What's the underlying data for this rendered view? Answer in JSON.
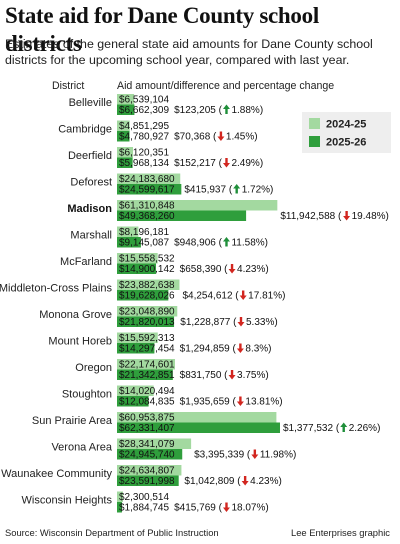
{
  "title": "State aid for Dane County school districts",
  "subtitle": "Estimates of the general state aid amounts for Dane County school districts for the upcoming school year, compared with last year.",
  "source": "Source: Wisconsin Department of Public Instruction",
  "credit": "Lee Enterprises graphic",
  "colors": {
    "light": "#a3d9a0",
    "dark": "#2f9e3c",
    "up": "#1f8f3a",
    "down": "#d2261f"
  },
  "chart_data": {
    "type": "bar",
    "orientation": "horizontal",
    "column_headers": {
      "category": "District",
      "value": "Aid amount/difference and percentage change"
    },
    "legend": [
      "2024-25",
      "2025-26"
    ],
    "series": [
      {
        "name": "2024-25",
        "values": [
          6539104,
          4851295,
          6120351,
          24183680,
          61310848,
          8196181,
          15558532,
          23882638,
          23048890,
          15592313,
          22174601,
          14020494,
          60953875,
          28341079,
          24634807,
          2300514
        ]
      },
      {
        "name": "2025-26",
        "values": [
          6662309,
          4780927,
          5968134,
          24599617,
          49368260,
          9145087,
          14900142,
          19628026,
          21820013,
          14297454,
          21342851,
          12084835,
          62331407,
          24945740,
          23591998,
          1884745
        ]
      }
    ],
    "categories": [
      "Belleville",
      "Cambridge",
      "Deerfield",
      "Deforest",
      "Madison",
      "Marshall",
      "McFarland",
      "Middleton-Cross Plains",
      "Monona Grove",
      "Mount Horeb",
      "Oregon",
      "Stoughton",
      "Sun Prairie Area",
      "Verona Area",
      "Waunakee Community",
      "Wisconsin Heights"
    ],
    "highlight": "Madison",
    "rows": [
      {
        "label": "$6,539,104",
        "label2": "$6,662,309",
        "diff": "$123,205",
        "pct": "1.88%",
        "dir": "up"
      },
      {
        "label": "$4,851,295",
        "label2": "$4,780,927",
        "diff": "$70,368",
        "pct": "1.45%",
        "dir": "down"
      },
      {
        "label": "$6,120,351",
        "label2": "$5,968,134",
        "diff": "$152,217",
        "pct": "2.49%",
        "dir": "down"
      },
      {
        "label": "$24,183,680",
        "label2": "$24,599,617",
        "diff": "$415,937",
        "pct": "1.72%",
        "dir": "up"
      },
      {
        "label": "$61,310,848",
        "label2": "$49,368,260",
        "diff": "$11,942,588",
        "pct": "19.48%",
        "dir": "down"
      },
      {
        "label": "$8,196,181",
        "label2": "$9,145,087",
        "diff": "$948,906",
        "pct": "11.58%",
        "dir": "up"
      },
      {
        "label": "$15,558,532",
        "label2": "$14,900,142",
        "diff": "$658,390",
        "pct": "4.23%",
        "dir": "down"
      },
      {
        "label": "$23,882,638",
        "label2": "$19,628,026",
        "diff": "$4,254,612",
        "pct": "17.81%",
        "dir": "down"
      },
      {
        "label": "$23,048,890",
        "label2": "$21,820,013",
        "diff": "$1,228,877",
        "pct": "5.33%",
        "dir": "down"
      },
      {
        "label": "$15,592,313",
        "label2": "$14,297,454",
        "diff": "$1,294,859",
        "pct": "8.3%",
        "dir": "down"
      },
      {
        "label": "$22,174,601",
        "label2": "$21,342,851",
        "diff": "$831,750",
        "pct": "3.75%",
        "dir": "down"
      },
      {
        "label": "$14,020,494",
        "label2": "$12,084,835",
        "diff": "$1,935,659",
        "pct": "13.81%",
        "dir": "down"
      },
      {
        "label": "$60,953,875",
        "label2": "$62,331,407",
        "diff": "$1,377,532",
        "pct": "2.26%",
        "dir": "up"
      },
      {
        "label": "$28,341,079",
        "label2": "$24,945,740",
        "diff": "$3,395,339",
        "pct": "11.98%",
        "dir": "down"
      },
      {
        "label": "$24,634,807",
        "label2": "$23,591,998",
        "diff": "$1,042,809",
        "pct": "4.23%",
        "dir": "down"
      },
      {
        "label": "$2,300,514",
        "label2": "$1,884,745",
        "diff": "$415,769",
        "pct": "18.07%",
        "dir": "down"
      }
    ]
  }
}
